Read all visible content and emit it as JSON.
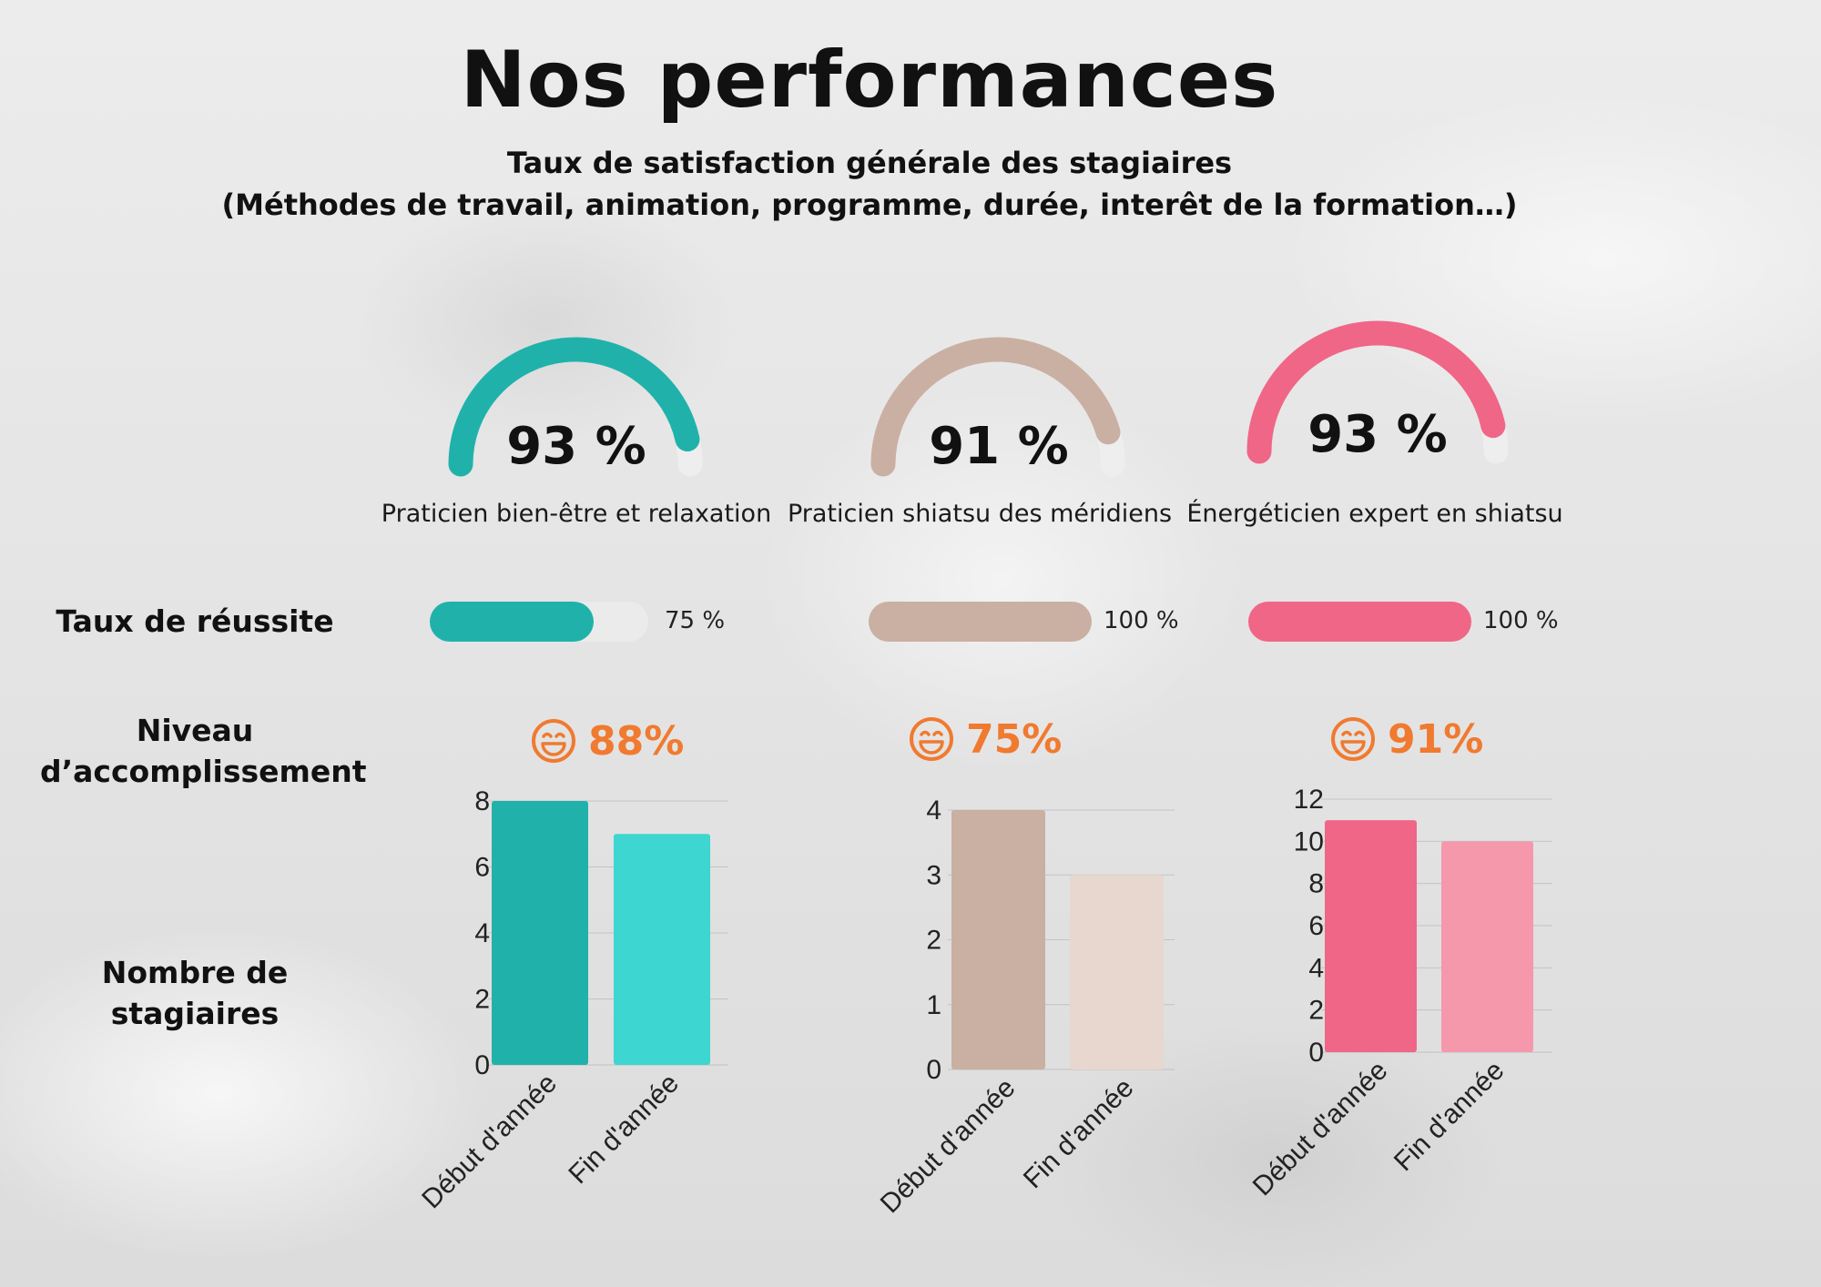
{
  "page": {
    "title": "Nos performances",
    "subtitle_1": "Taux de satisfaction générale des stagiaires",
    "subtitle_2": "(Méthodes de travail, animation, programme, durée, interêt de la formation…)",
    "row_labels": {
      "success": "Taux de réussite",
      "accomplishment_1": "Niveau",
      "accomplishment_2": "d’accomplissement",
      "trainees_1": "Nombre de",
      "trainees_2": "stagiaires"
    },
    "accent_color": "#f07a2f"
  },
  "formations": [
    {
      "name": "Praticien bien-être et relaxation",
      "satisfaction_label": "93 %",
      "success_label": "75 %",
      "accomplishment_label": "88%",
      "color_main": "#20b2aa",
      "color_secondary": "#3dd6d0",
      "icon": "smiley-icon"
    },
    {
      "name": "Praticien shiatsu des méridiens",
      "satisfaction_label": "91 %",
      "success_label": "100 %",
      "accomplishment_label": "75%",
      "color_main": "#c9b0a2",
      "color_secondary": "#e8d7ce",
      "icon": "smiley-icon"
    },
    {
      "name": "Énergéticien expert en shiatsu",
      "satisfaction_label": "93 %",
      "success_label": "100 %",
      "accomplishment_label": "91%",
      "color_main": "#f06687",
      "color_secondary": "#f598ab",
      "icon": "smiley-icon"
    }
  ],
  "chart_data": [
    {
      "type": "gauge",
      "categories": [
        "Praticien bien-être et relaxation",
        "Praticien shiatsu des méridiens",
        "Énergéticien expert en shiatsu"
      ],
      "values": [
        93,
        91,
        93
      ],
      "unit": "%",
      "ylim": [
        0,
        100
      ]
    },
    {
      "type": "bar",
      "orientation": "horizontal",
      "title": "Taux de réussite",
      "categories": [
        "Praticien bien-être et relaxation",
        "Praticien shiatsu des méridiens",
        "Énergéticien expert en shiatsu"
      ],
      "values": [
        75,
        100,
        100
      ],
      "unit": "%",
      "ylim": [
        0,
        100
      ]
    },
    {
      "type": "bar",
      "categories": [
        "Début d'année",
        "Fin d'année"
      ],
      "values": [
        8,
        7
      ],
      "ylim": [
        0,
        8
      ],
      "yticks": [
        "0",
        "2",
        "4",
        "6",
        "8"
      ],
      "grid": true
    },
    {
      "type": "bar",
      "categories": [
        "Début d'année",
        "Fin d'année"
      ],
      "values": [
        4,
        3
      ],
      "ylim": [
        0,
        4
      ],
      "yticks": [
        "0",
        "1",
        "2",
        "3",
        "4"
      ],
      "grid": true
    },
    {
      "type": "bar",
      "categories": [
        "Début d'année",
        "Fin d'année"
      ],
      "values": [
        11,
        10
      ],
      "ylim": [
        0,
        12
      ],
      "yticks": [
        "0",
        "2",
        "4",
        "6",
        "8",
        "10",
        "12"
      ],
      "grid": true
    }
  ]
}
